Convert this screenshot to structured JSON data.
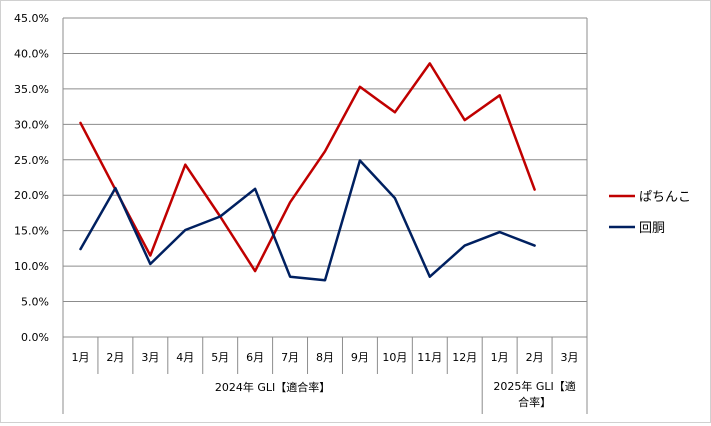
{
  "chart_data": {
    "type": "line",
    "categories": [
      "1月",
      "2月",
      "3月",
      "4月",
      "5月",
      "6月",
      "7月",
      "8月",
      "9月",
      "10月",
      "11月",
      "12月",
      "1月",
      "2月",
      "3月"
    ],
    "groups": [
      {
        "label": "2024年 GLI【適合率】",
        "start": 0,
        "end": 11,
        "lines": [
          "2024年 GLI【適合率】"
        ]
      },
      {
        "label": "2025年 GLI【適合率】",
        "start": 12,
        "end": 14,
        "lines": [
          "2025年 GLI【適",
          "合率】"
        ]
      }
    ],
    "series": [
      {
        "name": "ぱちんこ",
        "color": "#c00000",
        "values": [
          0.302,
          0.208,
          0.115,
          0.243,
          0.17,
          0.093,
          0.19,
          0.262,
          0.353,
          0.317,
          0.386,
          0.306,
          0.341,
          0.208,
          null
        ]
      },
      {
        "name": "回胴",
        "color": "#002060",
        "values": [
          0.124,
          0.21,
          0.103,
          0.151,
          0.17,
          0.209,
          0.085,
          0.08,
          0.249,
          0.196,
          0.085,
          0.129,
          0.148,
          0.129,
          null
        ]
      }
    ],
    "ylim": [
      0,
      0.45
    ],
    "yticks": [
      0,
      0.05,
      0.1,
      0.15,
      0.2,
      0.25,
      0.3,
      0.35,
      0.4,
      0.45
    ],
    "ytick_labels": [
      "0.0%",
      "5.0%",
      "10.0%",
      "15.0%",
      "20.0%",
      "25.0%",
      "30.0%",
      "35.0%",
      "40.0%",
      "45.0%"
    ],
    "grid": true,
    "legend_position": "right"
  }
}
